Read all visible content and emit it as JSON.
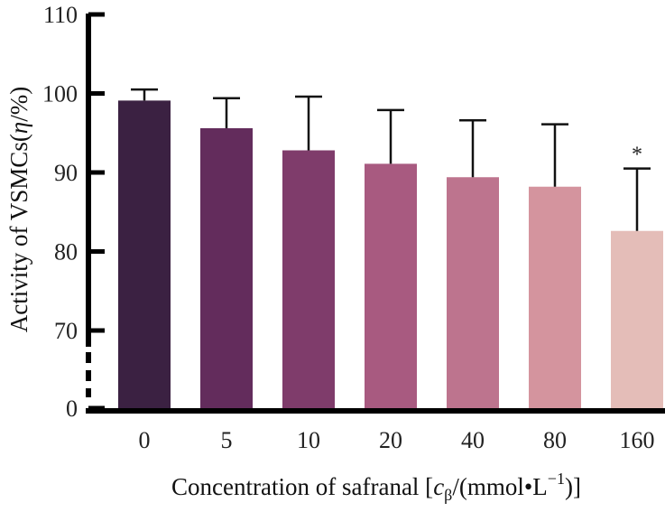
{
  "chart_data": {
    "type": "bar",
    "categories": [
      "0",
      "5",
      "10",
      "20",
      "40",
      "80",
      "160"
    ],
    "values": [
      99.1,
      95.6,
      92.8,
      91.1,
      89.4,
      88.2,
      82.6
    ],
    "errors": [
      1.4,
      3.8,
      6.8,
      6.8,
      7.2,
      7.9,
      7.9
    ],
    "significance": [
      "",
      "",
      "",
      "",
      "",
      "",
      "*"
    ],
    "colors": [
      "#3b2142",
      "#632c5c",
      "#7f3c6b",
      "#a85a80",
      "#bd748e",
      "#d4949e",
      "#e4bdb8"
    ],
    "yticks": [
      "0",
      "70",
      "80",
      "90",
      "100",
      "110"
    ],
    "ylim": [
      65,
      110
    ],
    "axis_break": true,
    "ylabel": {
      "prefix": "Activity of VSMCs(",
      "var": "η",
      "suffix": "/%)"
    },
    "xlabel": {
      "prefix": "Concentration of safranal [",
      "var": "c",
      "sub": "β",
      "middle": "/(mmol•L",
      "sup": "−1",
      "suffix": ")]"
    }
  }
}
